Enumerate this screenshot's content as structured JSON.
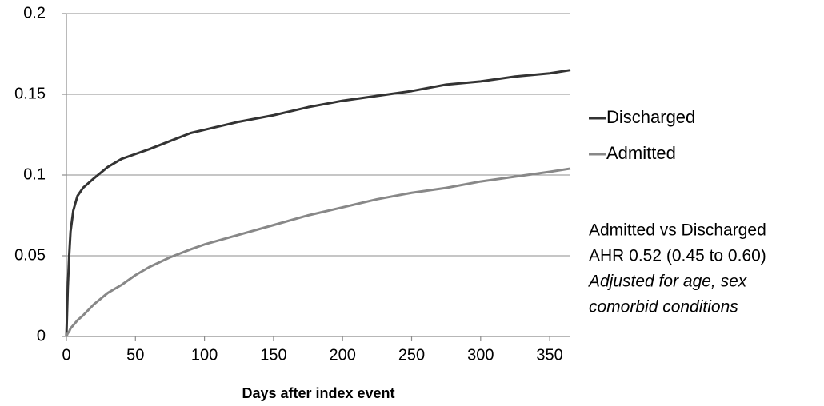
{
  "chart_data": {
    "type": "line",
    "x_label": "Days after index event",
    "x": [
      0,
      1,
      2,
      3,
      5,
      8,
      12,
      20,
      30,
      40,
      50,
      60,
      75,
      90,
      100,
      125,
      150,
      175,
      200,
      225,
      250,
      275,
      300,
      325,
      350,
      365
    ],
    "series": [
      {
        "name": "Discharged",
        "color": "#333333",
        "values": [
          0,
          0.03,
          0.05,
          0.065,
          0.078,
          0.087,
          0.092,
          0.098,
          0.105,
          0.11,
          0.113,
          0.116,
          0.121,
          0.126,
          0.128,
          0.133,
          0.137,
          0.142,
          0.146,
          0.149,
          0.152,
          0.156,
          0.158,
          0.161,
          0.163,
          0.165
        ]
      },
      {
        "name": "Admitted",
        "color": "#888888",
        "values": [
          0,
          0.002,
          0.003,
          0.005,
          0.007,
          0.01,
          0.013,
          0.02,
          0.027,
          0.032,
          0.038,
          0.043,
          0.049,
          0.054,
          0.057,
          0.063,
          0.069,
          0.075,
          0.08,
          0.085,
          0.089,
          0.092,
          0.096,
          0.099,
          0.102,
          0.104
        ]
      }
    ],
    "xlim": [
      0,
      365
    ],
    "xticks": [
      0,
      50,
      100,
      150,
      200,
      250,
      300,
      350
    ],
    "ylim": [
      0,
      0.2
    ],
    "yticks": [
      0,
      0.05,
      0.1,
      0.15,
      0.2
    ],
    "grid": true,
    "legend": "right",
    "annotations": [
      {
        "text": "Admitted vs Discharged",
        "italic": false
      },
      {
        "text": "AHR 0.52 (0.45 to 0.60)",
        "italic": false
      },
      {
        "text": "Adjusted for age, sex",
        "italic": true
      },
      {
        "text": "comorbid conditions",
        "italic": true
      }
    ]
  }
}
